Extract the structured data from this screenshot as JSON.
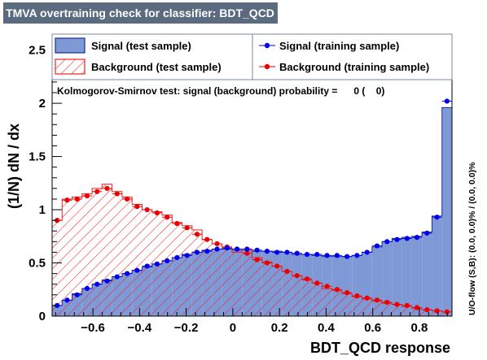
{
  "title": "TMVA overtraining check for classifier: BDT_QCD",
  "ks_text": "Kolmogorov-Smirnov test: signal (background) probability =      0 (    0)",
  "overflow_text": "U/O-flow (S,B): (0.0, 0.0)% / (0.0, 0.0)%",
  "colors": {
    "title_bg": "#5a6a7f",
    "signal_fill": "#7e99d6",
    "signal_line": "#1a2f8f",
    "signal_marker": "#0000ee",
    "background_hatch": "#ee2222",
    "background_marker": "#ee0000"
  },
  "chart_data": {
    "type": "histogram",
    "xlabel": "BDT_QCD response",
    "ylabel": "(1/N) dN / dx",
    "xlim": [
      -0.775,
      0.94
    ],
    "ylim": [
      0,
      2.65
    ],
    "xticks": [
      -0.6,
      -0.4,
      -0.2,
      0,
      0.2,
      0.4,
      0.6,
      0.8
    ],
    "xtick_labels": [
      "−0.6",
      "−0.4",
      "−0.2",
      "0",
      "0.2",
      "0.4",
      "0.6",
      "0.8"
    ],
    "yticks": [
      0,
      0.5,
      1,
      1.5,
      2,
      2.5
    ],
    "ytick_labels": [
      "0",
      "0.5",
      "1",
      "1.5",
      "2",
      "2.5"
    ],
    "grid": false,
    "legend_position": "top",
    "bins": {
      "min": -0.775,
      "max": 0.94,
      "count": 40
    },
    "series": [
      {
        "name": "Signal (test sample)",
        "style": "filled-histogram",
        "values": [
          0.1,
          0.15,
          0.21,
          0.26,
          0.3,
          0.34,
          0.37,
          0.4,
          0.43,
          0.46,
          0.49,
          0.52,
          0.55,
          0.58,
          0.6,
          0.62,
          0.63,
          0.63,
          0.62,
          0.62,
          0.61,
          0.61,
          0.61,
          0.6,
          0.58,
          0.58,
          0.57,
          0.56,
          0.56,
          0.56,
          0.57,
          0.6,
          0.65,
          0.7,
          0.73,
          0.74,
          0.75,
          0.79,
          0.94,
          1.96
        ]
      },
      {
        "name": "Background (test sample)",
        "style": "hatched-histogram",
        "values": [
          0.9,
          1.1,
          1.12,
          1.15,
          1.2,
          1.24,
          1.17,
          1.12,
          1.05,
          1.0,
          0.98,
          0.95,
          0.88,
          0.85,
          0.81,
          0.72,
          0.68,
          0.64,
          0.6,
          0.62,
          0.55,
          0.51,
          0.47,
          0.42,
          0.38,
          0.34,
          0.31,
          0.26,
          0.24,
          0.21,
          0.18,
          0.16,
          0.14,
          0.12,
          0.11,
          0.09,
          0.07,
          0.06,
          0.05,
          0.04
        ]
      },
      {
        "name": "Signal (training sample)",
        "style": "markers",
        "values": [
          0.1,
          0.15,
          0.2,
          0.26,
          0.3,
          0.33,
          0.37,
          0.4,
          0.43,
          0.47,
          0.49,
          0.52,
          0.55,
          0.57,
          0.6,
          0.61,
          0.63,
          0.64,
          0.63,
          0.63,
          0.62,
          0.61,
          0.6,
          0.6,
          0.59,
          0.58,
          0.58,
          0.57,
          0.57,
          0.56,
          0.57,
          0.6,
          0.66,
          0.7,
          0.72,
          0.73,
          0.74,
          0.78,
          0.93,
          2.02
        ]
      },
      {
        "name": "Background (training sample)",
        "style": "markers",
        "values": [
          0.9,
          1.09,
          1.1,
          1.13,
          1.17,
          1.2,
          1.15,
          1.1,
          1.03,
          1.0,
          0.97,
          0.93,
          0.87,
          0.83,
          0.77,
          0.72,
          0.68,
          0.65,
          0.63,
          0.59,
          0.53,
          0.5,
          0.47,
          0.42,
          0.38,
          0.35,
          0.31,
          0.28,
          0.25,
          0.22,
          0.19,
          0.17,
          0.15,
          0.13,
          0.11,
          0.1,
          0.08,
          0.06,
          0.05,
          0.04
        ]
      }
    ]
  }
}
